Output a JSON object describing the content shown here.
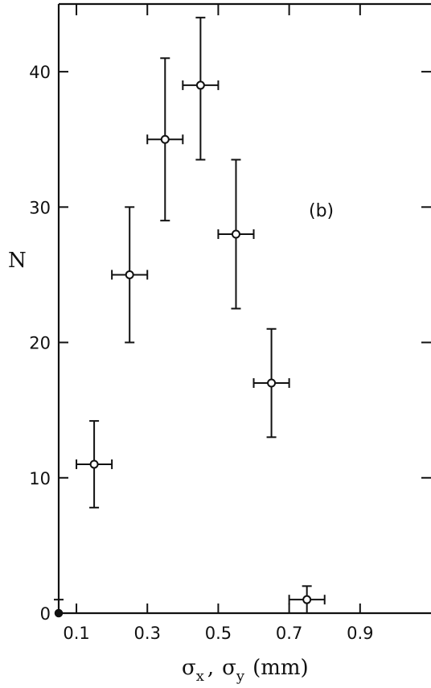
{
  "chart_data": {
    "type": "scatter",
    "panel_label": "(b)",
    "xlabel_parts": {
      "sx_base": "σ",
      "sx_sub": "x",
      "sep": ",",
      "sy_base": "σ",
      "sy_sub": "y",
      "unit": "(mm)"
    },
    "ylabel": "N",
    "xlim": [
      0.05,
      1.1
    ],
    "ylim": [
      0,
      45
    ],
    "xticks": [
      0.1,
      0.3,
      0.5,
      0.7,
      0.9
    ],
    "xtick_labels": [
      "0.1",
      "0.3",
      "0.5",
      "0.7",
      "0.9"
    ],
    "yticks": [
      0,
      10,
      20,
      30,
      40
    ],
    "ytick_labels": [
      "0",
      "10",
      "20",
      "30",
      "40"
    ],
    "grid": false,
    "series": [
      {
        "x": [
          0.05,
          0.15,
          0.25,
          0.35,
          0.45,
          0.55,
          0.65,
          0.75
        ],
        "y": [
          0,
          11,
          25,
          35,
          39,
          28,
          17,
          1
        ],
        "xerr": [
          0,
          0.05,
          0.05,
          0.05,
          0.05,
          0.05,
          0.05,
          0.05
        ],
        "yerr_low": [
          0,
          3.2,
          5,
          6,
          5.5,
          5.5,
          4,
          1
        ],
        "yerr_high": [
          1,
          3.2,
          5,
          6,
          5,
          5.5,
          4,
          1
        ]
      }
    ]
  }
}
